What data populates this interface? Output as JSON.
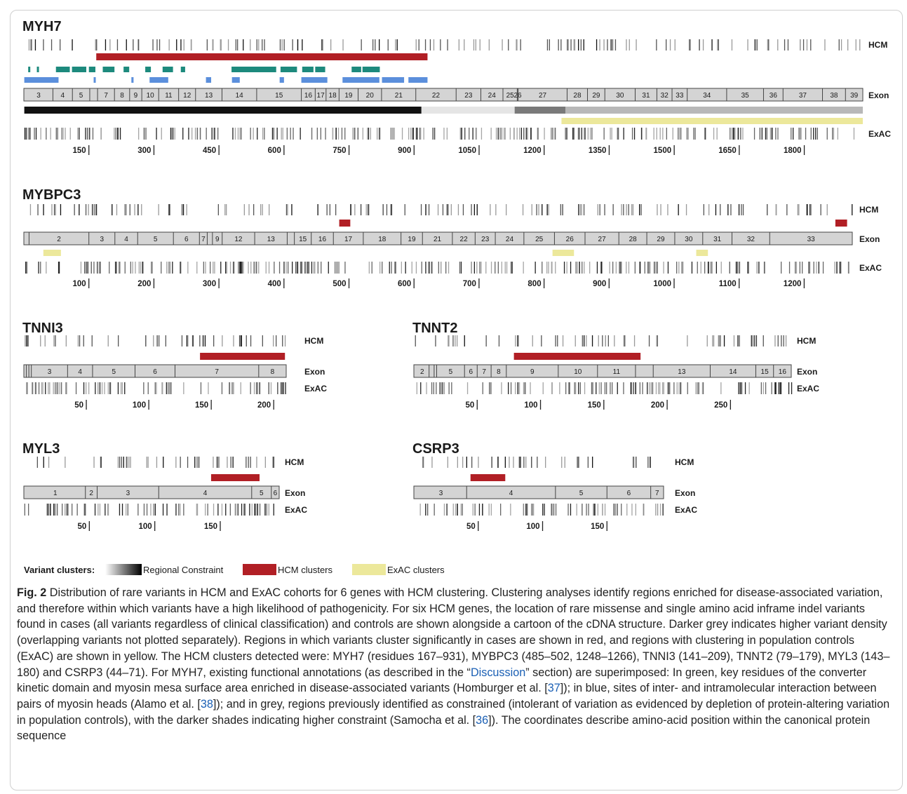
{
  "figure": {
    "row_labels": {
      "hcm": "HCM",
      "exon": "Exon",
      "exac": "ExAC"
    },
    "colors": {
      "hcm_cluster": "#b11f25",
      "exac_cluster": "#ece89b",
      "green_annotation": "#1d8a7d",
      "blue_annotation": "#5b8fdc",
      "constraint_high": "#111111",
      "constraint_mid": "#7a7a7a",
      "constraint_low": "#b8b8b8",
      "constraint_none": "#e5e5e5",
      "exon_fill": "#d4d4d4"
    },
    "panels": [
      {
        "gene": "MYH7",
        "length": 1935,
        "exons": [
          "3",
          "4",
          "5",
          "",
          "7",
          "8",
          "9",
          "10",
          "11",
          "12",
          "13",
          "14",
          "15",
          "16",
          "17",
          "18",
          "19",
          "20",
          "21",
          "22",
          "23",
          "24",
          "25",
          "26",
          "27",
          "28",
          "29",
          "30",
          "31",
          "32",
          "33",
          "34",
          "35",
          "36",
          "37",
          "38",
          "39"
        ],
        "exon_bounds": [
          1,
          67,
          112,
          152,
          170,
          209,
          244,
          272,
          311,
          357,
          396,
          457,
          537,
          640,
          672,
          697,
          727,
          771,
          825,
          904,
          997,
          1054,
          1105,
          1138,
          1140,
          1253,
          1300,
          1340,
          1410,
          1460,
          1495,
          1530,
          1621,
          1706,
          1751,
          1842,
          1895,
          1935
        ],
        "ticks": [
          150,
          300,
          450,
          600,
          750,
          900,
          1050,
          1200,
          1350,
          1500,
          1650,
          1800
        ],
        "hcm_clusters": [
          [
            167,
            931
          ]
        ],
        "exac_clusters": [
          [
            1240,
            1935
          ]
        ],
        "green_annotations": [
          [
            10,
            13
          ],
          [
            30,
            33
          ],
          [
            74,
            106
          ],
          [
            111,
            144
          ],
          [
            150,
            165
          ],
          [
            182,
            209
          ],
          [
            230,
            243
          ],
          [
            280,
            293
          ],
          [
            320,
            344
          ],
          [
            362,
            372
          ],
          [
            479,
            582
          ],
          [
            592,
            630
          ],
          [
            642,
            668
          ],
          [
            672,
            695
          ],
          [
            756,
            778
          ],
          [
            781,
            821
          ]
        ],
        "blue_annotations": [
          [
            1,
            80
          ],
          [
            161,
            164
          ],
          [
            248,
            253
          ],
          [
            290,
            333
          ],
          [
            420,
            432
          ],
          [
            480,
            498
          ],
          [
            590,
            600
          ],
          [
            640,
            700
          ],
          [
            735,
            820
          ],
          [
            826,
            877
          ],
          [
            887,
            931
          ]
        ],
        "constraint": [
          {
            "range": [
              1,
              917
            ],
            "level": "high"
          },
          {
            "range": [
              917,
              1132
            ],
            "level": "none"
          },
          {
            "range": [
              1132,
              1249
            ],
            "level": "mid"
          },
          {
            "range": [
              1249,
              1935
            ],
            "level": "low"
          }
        ]
      },
      {
        "gene": "MYBPC3",
        "length": 1274,
        "exons": [
          "",
          "2",
          "3",
          "4",
          "5",
          "6",
          "7",
          "",
          "9",
          "12",
          "13",
          "",
          "15",
          "16",
          "17",
          "18",
          "19",
          "21",
          "22",
          "23",
          "24",
          "25",
          "26",
          "27",
          "28",
          "29",
          "30",
          "31",
          "32",
          "33"
        ],
        "exon_bounds": [
          1,
          8,
          100,
          140,
          175,
          230,
          270,
          282,
          290,
          305,
          355,
          405,
          416,
          442,
          476,
          522,
          580,
          613,
          659,
          694,
          725,
          769,
          816,
          863,
          915,
          958,
          1001,
          1044,
          1089,
          1147,
          1274
        ],
        "ticks": [
          100,
          200,
          300,
          400,
          500,
          600,
          700,
          800,
          900,
          1000,
          1100,
          1200
        ],
        "hcm_clusters": [
          [
            485,
            502
          ],
          [
            1248,
            1266
          ]
        ],
        "exac_clusters": [
          [
            30,
            57
          ],
          [
            813,
            846
          ],
          [
            1034,
            1052
          ]
        ]
      },
      {
        "gene": "TNNI3",
        "length": 210,
        "exons": [
          "",
          "",
          "",
          "3",
          "4",
          "5",
          "6",
          "7",
          "8"
        ],
        "exon_bounds": [
          1,
          2,
          4,
          6,
          35,
          55,
          89,
          121,
          188,
          210
        ],
        "ticks": [
          50,
          100,
          150,
          200
        ],
        "hcm_clusters": [
          [
            141,
            209
          ]
        ],
        "exac_clusters": []
      },
      {
        "gene": "TNNT2",
        "length": 298,
        "exons": [
          "2",
          "",
          "",
          "5",
          "6",
          "7",
          "8",
          "9",
          "10",
          "11",
          "",
          "13",
          "14",
          "15",
          "16"
        ],
        "exon_bounds": [
          1,
          12,
          16,
          18,
          40,
          50,
          61,
          73,
          114,
          145,
          175,
          189,
          234,
          270,
          284,
          298
        ],
        "ticks": [
          50,
          100,
          150,
          200,
          250
        ],
        "hcm_clusters": [
          [
            79,
            179
          ]
        ],
        "exac_clusters": []
      },
      {
        "gene": "MYL3",
        "length": 195,
        "exons": [
          "1",
          "2",
          "3",
          "4",
          "5",
          "6"
        ],
        "exon_bounds": [
          1,
          47,
          56,
          103,
          174,
          189,
          195
        ],
        "ticks": [
          50,
          100,
          150
        ],
        "hcm_clusters": [
          [
            143,
            180
          ]
        ],
        "exac_clusters": []
      },
      {
        "gene": "CSRP3",
        "length": 194,
        "exons": [
          "3",
          "4",
          "5",
          "6",
          "7"
        ],
        "exon_bounds": [
          1,
          41,
          110,
          150,
          184,
          194
        ],
        "ticks": [
          50,
          100,
          150
        ],
        "hcm_clusters": [
          [
            44,
            71
          ]
        ],
        "exac_clusters": []
      }
    ],
    "legend": {
      "title": "Variant clusters:",
      "items": [
        {
          "label": "Regional Constraint",
          "kind": "gradient"
        },
        {
          "label": "HCM clusters",
          "kind": "red"
        },
        {
          "label": "ExAC clusters",
          "kind": "yellow"
        }
      ]
    }
  },
  "caption": {
    "label": "Fig. 2",
    "text1": " Distribution of rare variants in HCM and ExAC cohorts for 6 genes with HCM clustering. Clustering analyses identify regions enriched for disease-associated variation, and therefore within which variants have a high likelihood of pathogenicity. For six HCM genes, the location of rare missense and single amino acid inframe indel variants found in cases (all variants regardless of clinical classification) and controls are shown alongside a cartoon of the cDNA structure. Darker grey indicates higher variant density (overlapping variants not plotted separately). Regions in which variants cluster significantly in cases are shown in red, and regions with clustering in population controls (ExAC) are shown in yellow. The HCM clusters detected were: MYH7 (residues 167–931), MYBPC3 (485–502, 1248–1266), TNNI3 (141–209), TNNT2 (79–179), MYL3 (143–180) and CSRP3 (44–71). For MYH7, existing functional annotations (as described in the “",
    "link1": "Discussion",
    "text2": "” section) are superimposed: In green, key residues of the converter kinetic domain and myosin mesa surface area enriched in disease-associated variants (Homburger et al. [",
    "ref1": "37",
    "text3": "]); in blue, sites of inter- and intramolecular interaction between pairs of myosin heads (Alamo et al. [",
    "ref2": "38",
    "text4": "]); and in grey, regions previously identified as constrained (intolerant of variation as evidenced by depletion of protein-altering variation in population controls), with the darker shades indicating higher constraint (Samocha et al. [",
    "ref3": "36",
    "text5": "]). The coordinates describe amino-acid position within the canonical protein sequence"
  }
}
